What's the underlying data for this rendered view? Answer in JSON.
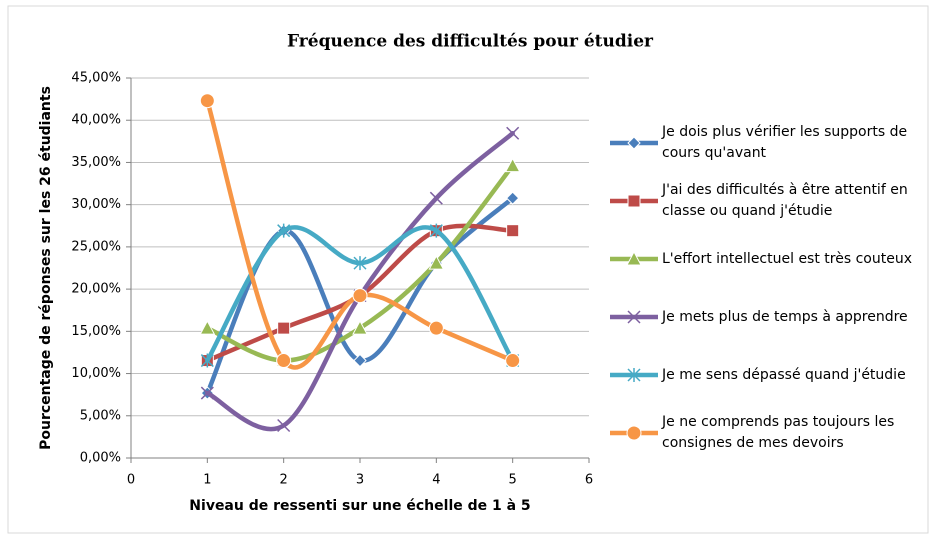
{
  "chart_data": {
    "type": "line",
    "title": "Fréquence des difficultés pour étudier",
    "x_label": "Niveau de ressenti sur une échelle de 1 à 5",
    "y_label": "Pourcentage de réponses sur les 26 étudiants",
    "x": [
      1,
      2,
      3,
      4,
      5
    ],
    "xlim": [
      0,
      6
    ],
    "xticks": [
      0,
      1,
      2,
      3,
      4,
      5,
      6
    ],
    "ylim": [
      0,
      45
    ],
    "yticks": [
      {
        "value": 0,
        "label": "0,00%"
      },
      {
        "value": 5,
        "label": "5,00%"
      },
      {
        "value": 10,
        "label": "10,00%"
      },
      {
        "value": 15,
        "label": "15,00%"
      },
      {
        "value": 20,
        "label": "20,00%"
      },
      {
        "value": 25,
        "label": "25,00%"
      },
      {
        "value": 30,
        "label": "30,00%"
      },
      {
        "value": 35,
        "label": "35,00%"
      },
      {
        "value": 40,
        "label": "40,00%"
      },
      {
        "value": 45,
        "label": "45,00%"
      }
    ],
    "grid": true,
    "smooth": true,
    "legend": "right",
    "series": [
      {
        "name": "Je dois plus vérifier les supports de cours qu'avant",
        "color": "#4a7ebb",
        "marker": "diamond",
        "values": [
          7.69,
          26.92,
          11.54,
          23.08,
          30.77
        ]
      },
      {
        "name": "J'ai des difficultés à être attentif en classe ou quand j'étudie",
        "color": "#be4b48",
        "marker": "square",
        "values": [
          11.54,
          15.38,
          19.23,
          26.92,
          26.92
        ]
      },
      {
        "name": "L'effort intellectuel est très couteux",
        "color": "#98b954",
        "marker": "triangle",
        "values": [
          15.38,
          11.54,
          15.38,
          23.08,
          34.62
        ]
      },
      {
        "name": "Je mets plus de temps à apprendre",
        "color": "#7d60a0",
        "marker": "x",
        "values": [
          7.69,
          3.85,
          19.23,
          30.77,
          38.46
        ]
      },
      {
        "name": "Je me sens dépassé quand j'étudie",
        "color": "#46aac5",
        "marker": "star",
        "values": [
          11.54,
          26.92,
          23.08,
          26.92,
          11.54
        ]
      },
      {
        "name": "Je ne comprends pas toujours les consignes de mes devoirs",
        "color": "#f79646",
        "marker": "circle",
        "values": [
          42.31,
          11.54,
          19.23,
          15.38,
          11.54
        ]
      }
    ]
  }
}
